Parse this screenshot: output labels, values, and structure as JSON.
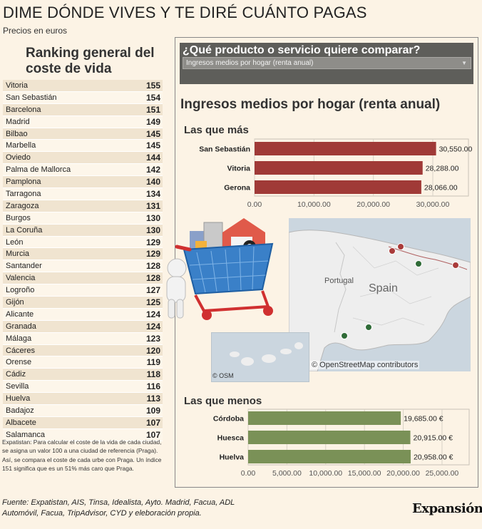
{
  "header": {
    "title": "DIME DÓNDE VIVES Y TE DIRÉ CUÁNTO PAGAS",
    "subtitle": "Precios en euros"
  },
  "ranking": {
    "title": "Ranking general del coste de vida",
    "items": [
      {
        "city": "Vitoria",
        "value": "155"
      },
      {
        "city": "San Sebastián",
        "value": "154"
      },
      {
        "city": "Barcelona",
        "value": "151"
      },
      {
        "city": "Madrid",
        "value": "149"
      },
      {
        "city": "Bilbao",
        "value": "145"
      },
      {
        "city": "Marbella",
        "value": "145"
      },
      {
        "city": "Oviedo",
        "value": "144"
      },
      {
        "city": "Palma de Mallorca",
        "value": "142"
      },
      {
        "city": "Pamplona",
        "value": "140"
      },
      {
        "city": "Tarragona",
        "value": "134"
      },
      {
        "city": "Zaragoza",
        "value": "131"
      },
      {
        "city": "Burgos",
        "value": "130"
      },
      {
        "city": "La Coruña",
        "value": "130"
      },
      {
        "city": "León",
        "value": "129"
      },
      {
        "city": "Murcia",
        "value": "129"
      },
      {
        "city": "Santander",
        "value": "128"
      },
      {
        "city": "Valencia",
        "value": "128"
      },
      {
        "city": "Logroño",
        "value": "127"
      },
      {
        "city": "Gijón",
        "value": "125"
      },
      {
        "city": "Alicante",
        "value": "124"
      },
      {
        "city": "Granada",
        "value": "124"
      },
      {
        "city": "Málaga",
        "value": "123"
      },
      {
        "city": "Cáceres",
        "value": "120"
      },
      {
        "city": "Orense",
        "value": "119"
      },
      {
        "city": "Cádiz",
        "value": "118"
      },
      {
        "city": "Sevilla",
        "value": "116"
      },
      {
        "city": "Huelva",
        "value": "113"
      },
      {
        "city": "Badajoz",
        "value": "109"
      },
      {
        "city": "Albacete",
        "value": "107"
      },
      {
        "city": "Salamanca",
        "value": "107"
      }
    ],
    "note": "Expatistan: Para calcular el coste de la vida de cada ciudad, se asigna un valor 100 a una ciudad de referencia (Praga). Así, se compara el coste de cada urbe con Praga. Un índice 151 significa que es un 51% más caro que Praga."
  },
  "selector": {
    "question": "¿Qué producto o servicio quiere comparar?",
    "selected": "Ingresos medios por hogar (renta anual)"
  },
  "product_title": "Ingresos medios por hogar (renta anual)",
  "map": {
    "country_label": "Spain",
    "portugal_label": "Portugal",
    "attribution": "© OpenStreetMap contributors",
    "osm_short": "© OSM",
    "colors": {
      "high": "#a93b3a",
      "low": "#2f6b37",
      "sea": "#cbd6df",
      "land": "#eeeeee"
    }
  },
  "chart_data": [
    {
      "type": "bar",
      "title": "Las que más",
      "categories": [
        "San Sebastián",
        "Vitoria",
        "Gerona"
      ],
      "values": [
        30550,
        28288,
        28066
      ],
      "value_labels": [
        "30,550.00",
        "28,288.00",
        "28,066.00"
      ],
      "xlim": [
        0,
        36000
      ],
      "ticks": [
        0,
        10000,
        20000,
        30000
      ],
      "tick_labels": [
        "0.00",
        "10,000.00",
        "20,000.00",
        "30,000.00"
      ],
      "color": "#a03a37",
      "grid": true
    },
    {
      "type": "bar",
      "title": "Las que menos",
      "categories": [
        "Córdoba",
        "Huesca",
        "Huelva"
      ],
      "values": [
        19685,
        20915,
        20958
      ],
      "value_labels": [
        "19,685.00 €",
        "20,915.00 €",
        "20,958.00 €"
      ],
      "xlim": [
        0,
        28500
      ],
      "ticks": [
        0,
        5000,
        10000,
        15000,
        20000,
        25000
      ],
      "tick_labels": [
        "0.00",
        "5,000.00",
        "10,000.00",
        "15,000.00",
        "20,000.00",
        "25,000.00"
      ],
      "color": "#7a9157",
      "grid": true
    }
  ],
  "footer": {
    "source": "Fuente: Expatistan, AIS, Tinsa, Idealista, Ayto. Madrid, Facua, ADL Automóvil, Facua, TripAdvisor, CYD y eleboración propia.",
    "logo": "Expansión"
  }
}
